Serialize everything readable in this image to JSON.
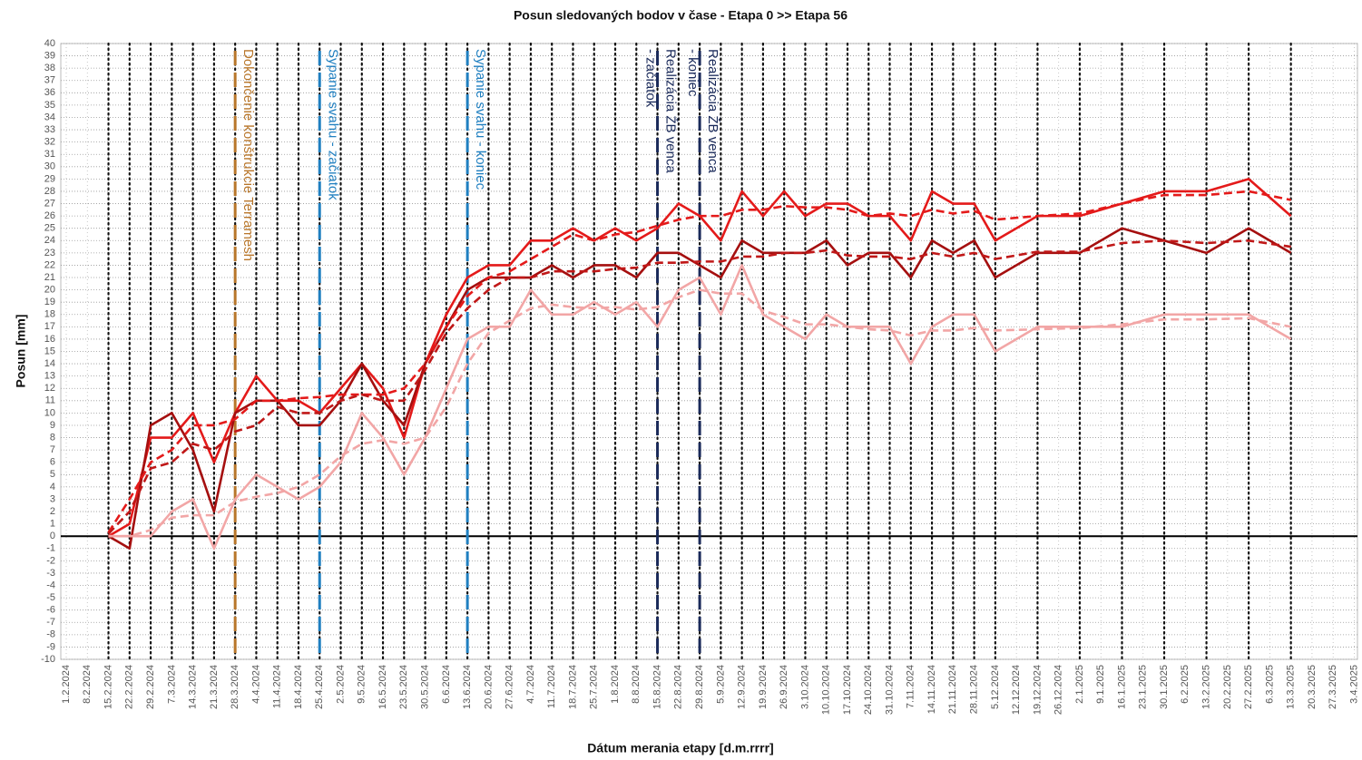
{
  "chart_data": {
    "type": "line",
    "title": "Posun sledovaných bodov v čase - Etapa 0 >> Etapa 56",
    "y_label": "Posun [mm]",
    "x_label": "Dátum merania etapy [d.m.rrrr]",
    "categories": [
      "1.2.2024",
      "8.2.2024",
      "15.2.2024",
      "22.2.2024",
      "29.2.2024",
      "7.3.2024",
      "14.3.2024",
      "21.3.2024",
      "28.3.2024",
      "4.4.2024",
      "11.4.2024",
      "18.4.2024",
      "25.4.2024",
      "2.5.2024",
      "9.5.2024",
      "16.5.2024",
      "23.5.2024",
      "30.5.2024",
      "6.6.2024",
      "13.6.2024",
      "20.6.2024",
      "27.6.2024",
      "4.7.2024",
      "11.7.2024",
      "18.7.2024",
      "25.7.2024",
      "1.8.2024",
      "8.8.2024",
      "15.8.2024",
      "22.8.2024",
      "29.8.2024",
      "5.9.2024",
      "12.9.2024",
      "19.9.2024",
      "26.9.2024",
      "3.10.2024",
      "10.10.2024",
      "17.10.2024",
      "24.10.2024",
      "31.10.2024",
      "7.11.2024",
      "14.11.2024",
      "21.11.2024",
      "28.11.2024",
      "5.12.2024",
      "12.12.2024",
      "19.12.2024",
      "26.12.2024",
      "2.1.2025",
      "9.1.2025",
      "16.1.2025",
      "23.1.2025",
      "30.1.2025",
      "6.2.2025",
      "13.2.2025",
      "20.2.2025",
      "27.2.2025",
      "6.3.2025",
      "13.3.2025",
      "20.3.2025",
      "27.3.2025",
      "3.4.2025"
    ],
    "x": [
      "15.2.2024",
      "22.2.2024",
      "29.2.2024",
      "7.3.2024",
      "14.3.2024",
      "21.3.2024",
      "28.3.2024",
      "4.4.2024",
      "11.4.2024",
      "18.4.2024",
      "25.4.2024",
      "2.5.2024",
      "9.5.2024",
      "16.5.2024",
      "23.5.2024",
      "30.5.2024",
      "6.6.2024",
      "13.6.2024",
      "20.6.2024",
      "27.6.2024",
      "4.7.2024",
      "11.7.2024",
      "18.7.2024",
      "25.7.2024",
      "1.8.2024",
      "8.8.2024",
      "15.8.2024",
      "22.8.2024",
      "29.8.2024",
      "5.9.2024",
      "12.9.2024",
      "19.9.2024",
      "26.9.2024",
      "3.10.2024",
      "10.10.2024",
      "17.10.2024",
      "24.10.2024",
      "31.10.2024",
      "7.11.2024",
      "14.11.2024",
      "21.11.2024",
      "28.11.2024",
      "5.12.2024",
      "19.12.2024",
      "2.1.2025",
      "16.1.2025",
      "30.1.2025",
      "13.2.2025",
      "27.2.2025",
      "13.3.2025"
    ],
    "series": [
      {
        "color": "#e41a1a",
        "dash": false,
        "values": [
          0,
          1,
          8,
          8,
          10,
          6,
          10,
          13,
          11,
          11,
          10,
          12,
          14,
          12,
          8,
          14,
          18,
          21,
          22,
          22,
          24,
          24,
          25,
          24,
          25,
          24,
          25,
          27,
          26,
          24,
          28,
          26,
          28,
          26,
          27,
          27,
          26,
          26,
          24,
          28,
          27,
          27,
          24,
          26,
          26,
          27,
          28,
          28,
          29,
          26
        ]
      },
      {
        "color": "#a50f0f",
        "dash": false,
        "values": [
          0,
          -1,
          9,
          10,
          7,
          2,
          10,
          11,
          11,
          9,
          9,
          11,
          14,
          11,
          9,
          14,
          17,
          20,
          21,
          21,
          21,
          22,
          21,
          22,
          22,
          21,
          23,
          23,
          22,
          21,
          24,
          23,
          23,
          23,
          24,
          22,
          23,
          23,
          21,
          24,
          23,
          24,
          21,
          23,
          23,
          25,
          24,
          23,
          25,
          23
        ]
      },
      {
        "color": "#f2a6a6",
        "dash": false,
        "values": [
          0,
          0,
          0,
          2,
          3,
          -1,
          3,
          5,
          4,
          3,
          4,
          6,
          10,
          8,
          5,
          8,
          12,
          16,
          17,
          17,
          20,
          18,
          18,
          19,
          18,
          19,
          17,
          20,
          21,
          18,
          22,
          18,
          17,
          16,
          18,
          17,
          17,
          17,
          14,
          17,
          18,
          18,
          15,
          17,
          17,
          17,
          18,
          18,
          18,
          16
        ]
      },
      {
        "color": "#e41a1a",
        "dash": true,
        "values": [
          0.3,
          3,
          6,
          7,
          9,
          9,
          9.5,
          11,
          11,
          11.2,
          11.3,
          11.5,
          11.5,
          11.5,
          12,
          14,
          17,
          19.5,
          21,
          21.5,
          22.5,
          23.5,
          24.5,
          24,
          24.5,
          24.7,
          25.2,
          25.7,
          26,
          26,
          26.5,
          26.5,
          26.8,
          26.7,
          26.7,
          26.5,
          26,
          26.2,
          26,
          26.5,
          26.2,
          26.4,
          25.7,
          26,
          26.2,
          27,
          27.7,
          27.7,
          28,
          27.3
        ]
      },
      {
        "color": "#c01818",
        "dash": true,
        "values": [
          0.2,
          2,
          5.5,
          6,
          7.5,
          7,
          8.5,
          9,
          10.5,
          10,
          10,
          11,
          11.5,
          11,
          11,
          13.5,
          16.5,
          18.5,
          20,
          21,
          21,
          21.5,
          21.5,
          21.5,
          21.7,
          21.8,
          22.2,
          22.2,
          22.3,
          22.3,
          22.7,
          22.7,
          23,
          23,
          23.2,
          22.8,
          22.7,
          22.7,
          22.5,
          23,
          22.7,
          23,
          22.5,
          23.1,
          23.1,
          23.8,
          24,
          23.8,
          24,
          23.5
        ]
      },
      {
        "color": "#f2a6a6",
        "dash": true,
        "values": [
          0,
          0,
          0.5,
          1.5,
          1.7,
          1.7,
          2.8,
          3.2,
          3.5,
          4,
          5,
          6.5,
          7.5,
          7.8,
          7.5,
          8,
          10.5,
          14,
          16.5,
          17.5,
          18.5,
          18.8,
          18.6,
          18.5,
          18.6,
          18.4,
          18.6,
          19.4,
          20,
          19.7,
          19.7,
          18.3,
          17.8,
          17.2,
          17.2,
          17,
          16.8,
          16.7,
          16.3,
          16.7,
          16.7,
          16.9,
          16.7,
          16.8,
          16.9,
          17.2,
          17.6,
          17.6,
          17.7,
          17
        ]
      }
    ],
    "annotations": [
      {
        "at": 8,
        "color": "#b8762a",
        "lines": [
          "Dokončenie konštrukcie Terramesh"
        ]
      },
      {
        "at": 12,
        "color": "#1f7fc0",
        "lines": [
          "Sypanie svahu - začiatok"
        ]
      },
      {
        "at": 19,
        "color": "#1f7fc0",
        "lines": [
          "Sypanie svahu - koniec"
        ]
      },
      {
        "at": 28,
        "color": "#1a2a5a",
        "lines": [
          "Realizácia ŽB venca",
          "- začiatok"
        ]
      },
      {
        "at": 30,
        "color": "#1a2a5a",
        "lines": [
          "Realizácia ŽB venca",
          "- koniec"
        ]
      }
    ],
    "ylim": [
      -10,
      40
    ],
    "yticks": [
      -10,
      -9,
      -8,
      -7,
      -6,
      -5,
      -4,
      -3,
      -2,
      -1,
      0,
      1,
      2,
      3,
      4,
      5,
      6,
      7,
      8,
      9,
      10,
      11,
      12,
      13,
      14,
      15,
      16,
      17,
      18,
      19,
      20,
      21,
      22,
      23,
      24,
      25,
      26,
      27,
      28,
      29,
      30,
      31,
      32,
      33,
      34,
      35,
      36,
      37,
      38,
      39,
      40
    ],
    "grid": true
  }
}
